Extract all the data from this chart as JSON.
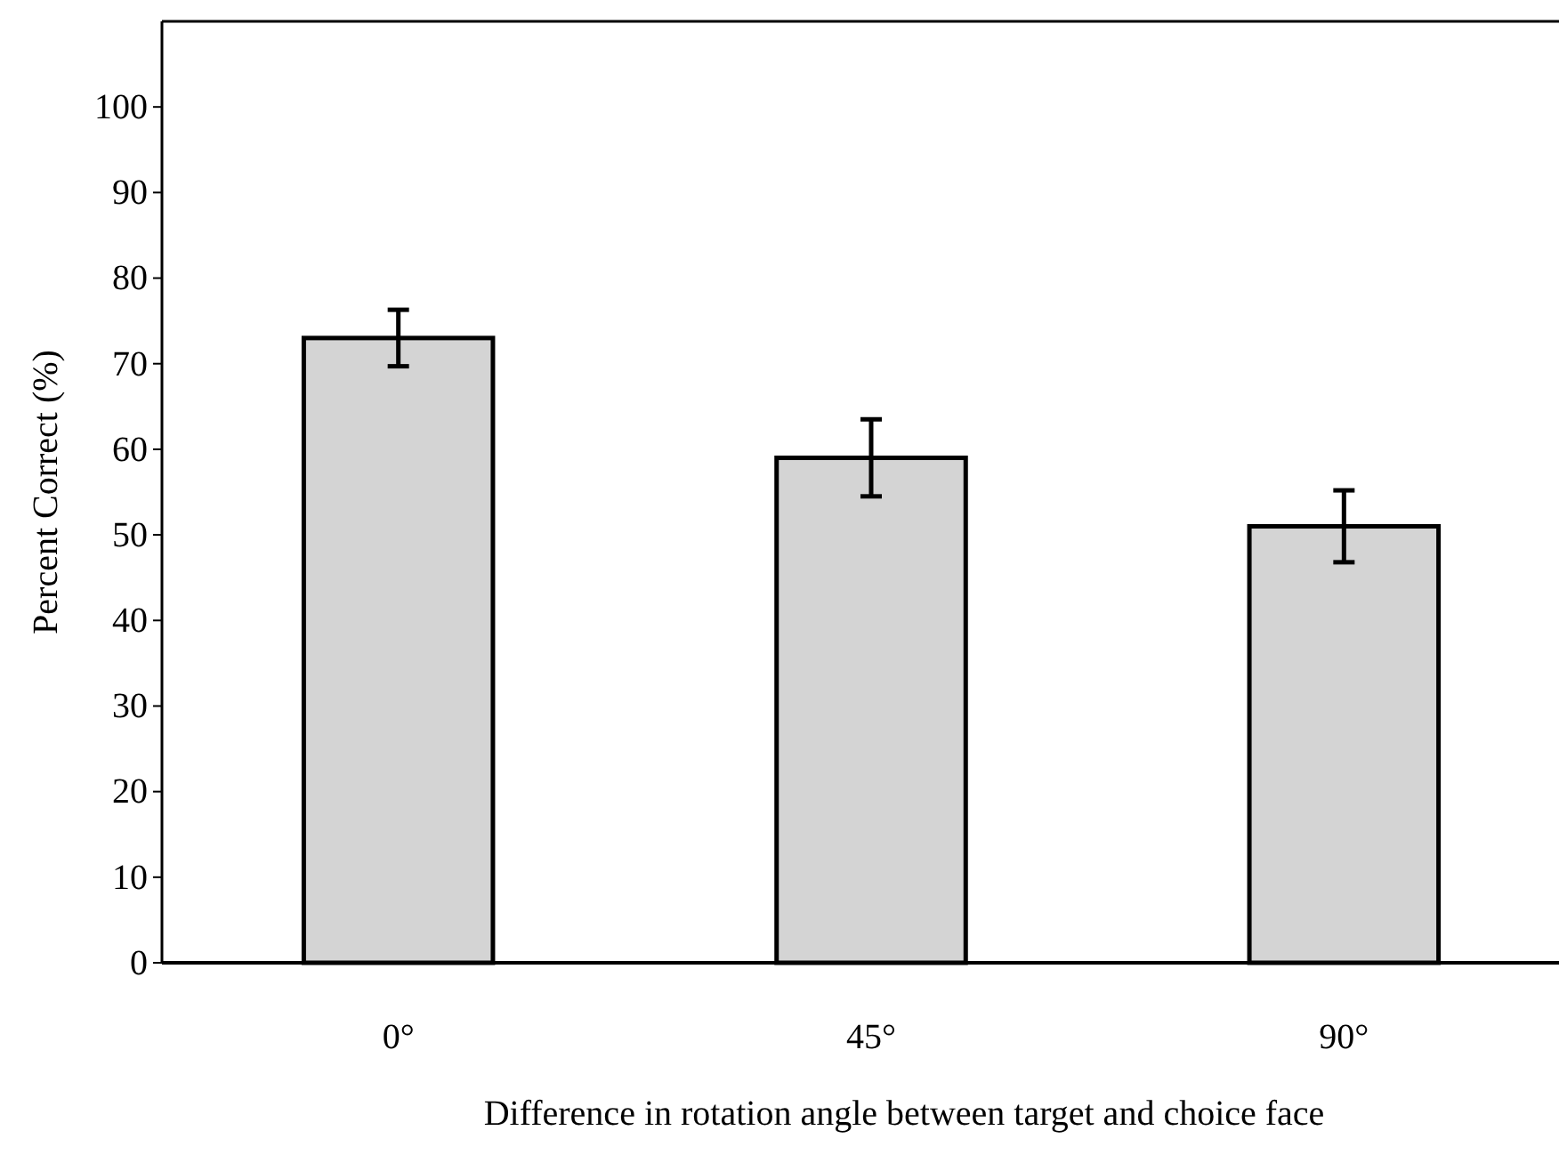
{
  "chart_data": {
    "type": "bar",
    "xlabel": "Difference in rotation angle between target and choice face",
    "ylabel": "Percent Correct (%)",
    "categories": [
      "0°",
      "45°",
      "90°"
    ],
    "values": [
      73,
      59,
      51
    ],
    "errors": [
      3.3,
      4.5,
      4.2
    ],
    "color": "#d4d4d4",
    "ylim": [
      0,
      110
    ],
    "yticks": [
      0,
      10,
      20,
      30,
      40,
      50,
      60,
      70,
      80,
      90,
      100
    ],
    "grid": false
  }
}
